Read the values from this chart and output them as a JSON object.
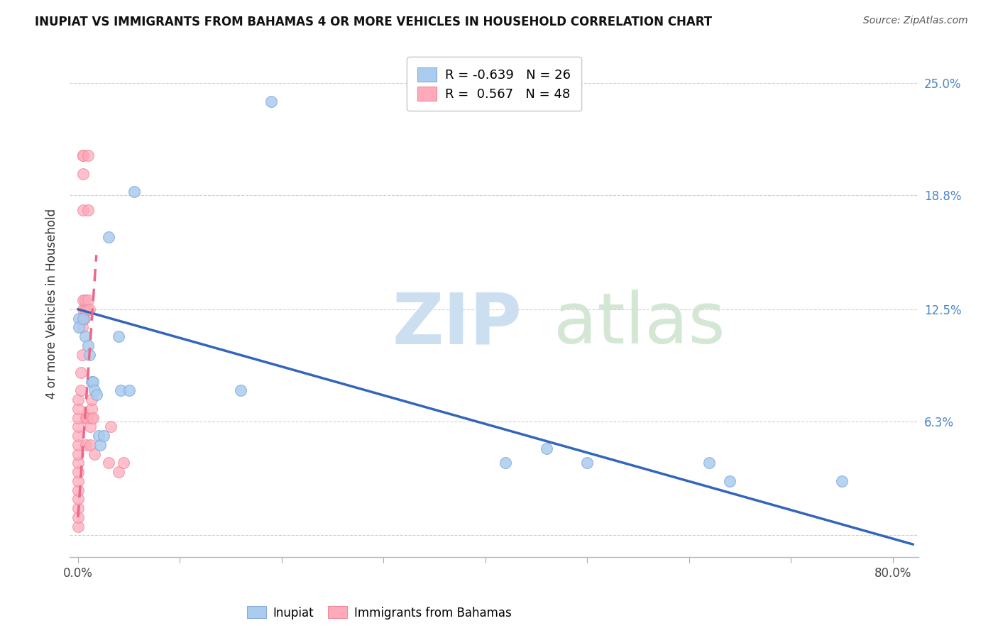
{
  "title": "INUPIAT VS IMMIGRANTS FROM BAHAMAS 4 OR MORE VEHICLES IN HOUSEHOLD CORRELATION CHART",
  "source": "Source: ZipAtlas.com",
  "ylabel": "4 or more Vehicles in Household",
  "x_tick_positions": [
    0.0,
    0.1,
    0.2,
    0.3,
    0.4,
    0.5,
    0.6,
    0.7,
    0.8
  ],
  "x_tick_labels": [
    "0.0%",
    "",
    "",
    "",
    "",
    "",
    "",
    "",
    "80.0%"
  ],
  "y_tick_positions": [
    0.0,
    0.063,
    0.125,
    0.188,
    0.25
  ],
  "y_tick_labels": [
    "",
    "6.3%",
    "12.5%",
    "18.8%",
    "25.0%"
  ],
  "xlim": [
    -0.008,
    0.825
  ],
  "ylim": [
    -0.012,
    0.268
  ],
  "inupiat_color": "#aaccee",
  "inupiat_edge_color": "#88aadd",
  "bahamas_color": "#ffaabb",
  "bahamas_edge_color": "#ee8899",
  "inupiat_line_color": "#3366bb",
  "bahamas_line_color": "#ee6688",
  "legend_R_inupiat": "-0.639",
  "legend_N_inupiat": "26",
  "legend_R_bahamas": "0.567",
  "legend_N_bahamas": "48",
  "inupiat_line_x0": 0.0,
  "inupiat_line_y0": 0.125,
  "inupiat_line_x1": 0.82,
  "inupiat_line_y1": -0.005,
  "bahamas_line_x0": 0.0,
  "bahamas_line_y0": 0.01,
  "bahamas_line_x1": 0.018,
  "bahamas_line_y1": 0.155,
  "inupiat_x": [
    0.001,
    0.001,
    0.005,
    0.007,
    0.01,
    0.011,
    0.013,
    0.015,
    0.016,
    0.018,
    0.02,
    0.022,
    0.025,
    0.03,
    0.04,
    0.042,
    0.05,
    0.055,
    0.16,
    0.19,
    0.42,
    0.46,
    0.5,
    0.62,
    0.64,
    0.75
  ],
  "inupiat_y": [
    0.12,
    0.115,
    0.12,
    0.11,
    0.105,
    0.1,
    0.085,
    0.085,
    0.08,
    0.078,
    0.055,
    0.05,
    0.055,
    0.165,
    0.11,
    0.08,
    0.08,
    0.19,
    0.08,
    0.24,
    0.04,
    0.048,
    0.04,
    0.04,
    0.03,
    0.03
  ],
  "bahamas_x": [
    0.0,
    0.0,
    0.0,
    0.0,
    0.0,
    0.0,
    0.0,
    0.0,
    0.0,
    0.0,
    0.0,
    0.0,
    0.0,
    0.0,
    0.0,
    0.003,
    0.003,
    0.004,
    0.004,
    0.005,
    0.005,
    0.005,
    0.005,
    0.005,
    0.005,
    0.005,
    0.006,
    0.007,
    0.007,
    0.008,
    0.008,
    0.009,
    0.009,
    0.01,
    0.01,
    0.01,
    0.011,
    0.012,
    0.012,
    0.013,
    0.013,
    0.013,
    0.015,
    0.016,
    0.03,
    0.032,
    0.04,
    0.045
  ],
  "bahamas_y": [
    0.005,
    0.01,
    0.015,
    0.02,
    0.025,
    0.03,
    0.035,
    0.04,
    0.045,
    0.05,
    0.055,
    0.06,
    0.065,
    0.07,
    0.075,
    0.08,
    0.09,
    0.1,
    0.115,
    0.12,
    0.125,
    0.13,
    0.18,
    0.2,
    0.21,
    0.21,
    0.12,
    0.125,
    0.13,
    0.05,
    0.065,
    0.065,
    0.125,
    0.13,
    0.18,
    0.21,
    0.125,
    0.05,
    0.06,
    0.065,
    0.07,
    0.075,
    0.065,
    0.045,
    0.04,
    0.06,
    0.035,
    0.04
  ]
}
